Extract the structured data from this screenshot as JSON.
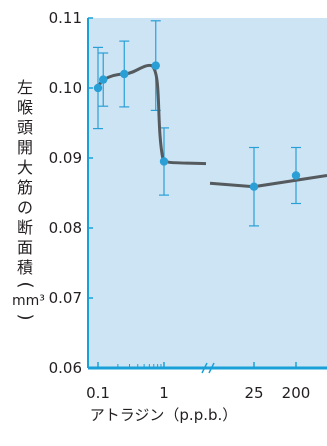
{
  "chart_data": {
    "type": "line",
    "title": "",
    "ylabel": "左喉頭開大筋の断面積",
    "ylabel_unit": "mm³",
    "xlabel": "アトラジン（p.p.b.）",
    "ylim": [
      0.06,
      0.11
    ],
    "yticks": [
      "0.11",
      "0.10",
      "0.09",
      "0.08",
      "0.07",
      "0.06"
    ],
    "ytick_values": [
      0.11,
      0.1,
      0.09,
      0.08,
      0.07,
      0.06
    ],
    "xticks": [
      "0.1",
      "1",
      "25",
      "200"
    ],
    "xscale": "log-with-break",
    "axis_break_marker": "//",
    "grid": false,
    "background_color": "#cde4f5",
    "axis_color": "#1aa0d8",
    "line_color": "#555a5e",
    "point_color": "#2a9fd6",
    "errorbar_color": "#2a9fd6",
    "series": [
      {
        "points": [
          {
            "x": 0.1,
            "y": 0.1,
            "err": 0.0058
          },
          {
            "x": 0.12,
            "y": 0.1012,
            "err": 0.0038
          },
          {
            "x": 0.25,
            "y": 0.102,
            "err": 0.0047
          },
          {
            "x": 0.75,
            "y": 0.1032,
            "err": 0.0064
          },
          {
            "x": 1,
            "y": 0.0895,
            "err": 0.0048
          },
          {
            "x": 25,
            "y": 0.0859,
            "err": 0.0056
          },
          {
            "x": 200,
            "y": 0.0875,
            "err": 0.004
          }
        ]
      }
    ]
  }
}
